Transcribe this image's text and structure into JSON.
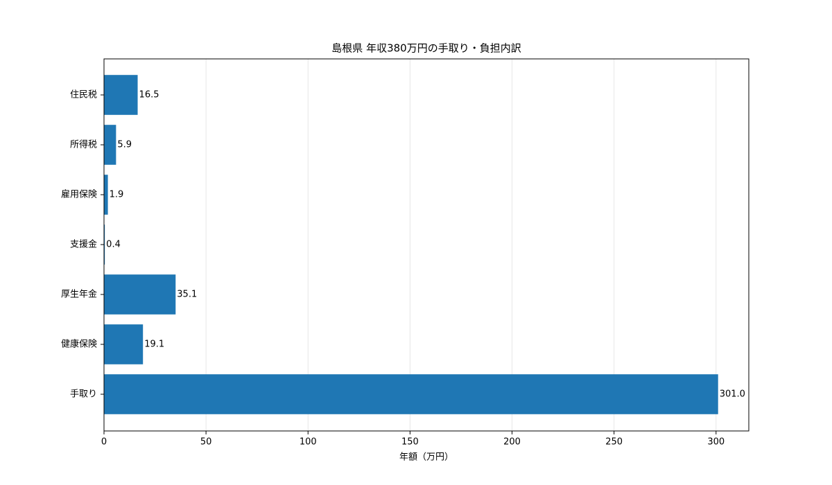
{
  "chart_data": {
    "type": "barh",
    "title": "島根県 年収380万円の手取り・負担内訳",
    "xlabel": "年額（万円）",
    "categories": [
      "手取り",
      "健康保険",
      "厚生年金",
      "支援金",
      "雇用保険",
      "所得税",
      "住民税"
    ],
    "values": [
      301.0,
      19.1,
      35.1,
      0.4,
      1.9,
      5.9,
      16.5
    ],
    "value_labels": [
      "301.0",
      "19.1",
      "35.1",
      "0.4",
      "1.9",
      "5.9",
      "16.5"
    ],
    "color": "#1f77b4",
    "xlim": [
      0,
      316.05
    ],
    "xticks": [
      0,
      50,
      100,
      150,
      200,
      250,
      300
    ],
    "grid": true
  }
}
